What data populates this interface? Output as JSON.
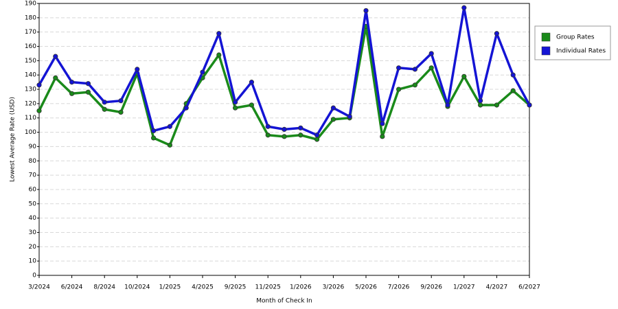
{
  "chart_data": {
    "type": "line",
    "x_label": "Month of Check In",
    "y_label": "Lowest Average Rate (USD)",
    "categories": [
      "3/2024",
      null,
      "6/2024",
      null,
      "8/2024",
      null,
      "10/2024",
      null,
      "1/2025",
      null,
      "4/2025",
      null,
      "9/2025",
      null,
      "11/2025",
      null,
      "1/2026",
      null,
      "3/2026",
      null,
      "5/2026",
      null,
      "7/2026",
      null,
      "9/2026",
      null,
      "1/2027",
      null,
      "4/2027",
      null,
      "6/2027"
    ],
    "series": [
      {
        "name": "Group Rates",
        "color": "#1a8a1a",
        "values": [
          115,
          138,
          127,
          128,
          116,
          114,
          141,
          96,
          91,
          120,
          138,
          154,
          117,
          119,
          98,
          97,
          98,
          95,
          109,
          110,
          174,
          97,
          130,
          133,
          145,
          118,
          139,
          119,
          119,
          129,
          119
        ]
      },
      {
        "name": "Individual Rates",
        "color": "#1414d4",
        "values": [
          133,
          153,
          135,
          134,
          121,
          122,
          144,
          101,
          104,
          117,
          142,
          169,
          121,
          135,
          104,
          102,
          103,
          98,
          117,
          111,
          185,
          106,
          145,
          144,
          155,
          119,
          187,
          122,
          169,
          140,
          119
        ]
      }
    ],
    "ylim": [
      0,
      190
    ],
    "yticks": [
      0,
      10,
      20,
      30,
      40,
      50,
      60,
      70,
      80,
      90,
      100,
      110,
      120,
      130,
      140,
      150,
      160,
      170,
      180,
      190
    ],
    "grid": true,
    "legend": "right"
  }
}
